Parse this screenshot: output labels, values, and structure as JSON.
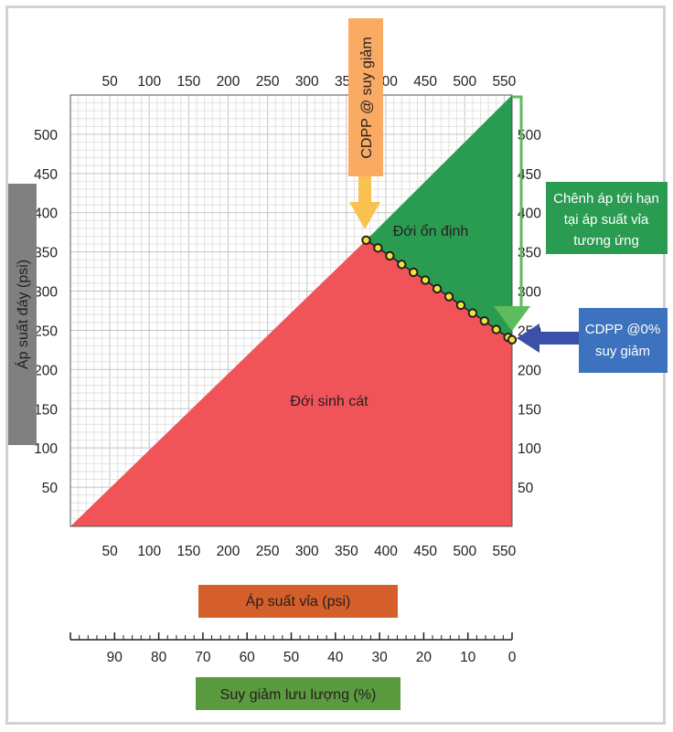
{
  "chart_data": {
    "type": "area",
    "axes": {
      "x_top_ticks": [
        "50",
        "100",
        "150",
        "200",
        "250",
        "300",
        "350",
        "400",
        "450",
        "500",
        "550"
      ],
      "x_bottom_ticks": [
        "50",
        "100",
        "150",
        "200",
        "250",
        "300",
        "350",
        "400",
        "450",
        "500",
        "550"
      ],
      "y_left_ticks": [
        "500",
        "450",
        "400",
        "350",
        "300",
        "250",
        "200",
        "150",
        "100",
        "50"
      ],
      "y_right_ticks": [
        "500",
        "450",
        "400",
        "350",
        "300",
        "250",
        "200",
        "150",
        "100",
        "50"
      ],
      "x_range": [
        0,
        560
      ],
      "y_range": [
        0,
        550
      ],
      "percent_ticks": [
        "90",
        "80",
        "70",
        "60",
        "50",
        "40",
        "30",
        "20",
        "10",
        "0"
      ],
      "percent_range": [
        100,
        0
      ]
    },
    "labels": {
      "ylabel": "Áp suất đáy (psi)",
      "xlabel": "Áp suất vỉa (psi)",
      "percent_label": "Suy giảm lưu lượng (%)",
      "zone_sand": "Đới sinh cát",
      "zone_stable": "Đới ổn định",
      "cdpp_depletion": "CDPP @ suy giảm",
      "critical_line1": "Chênh áp tới hạn",
      "critical_line2": "tại áp suất vỉa",
      "critical_line3": "tương ứng",
      "cdpp_zero_line1": "CDPP @0%",
      "cdpp_zero_line2": "suy giảm"
    },
    "regions": {
      "sand_zone": [
        [
          0,
          0
        ],
        [
          375,
          365
        ],
        [
          560,
          238
        ],
        [
          560,
          0
        ]
      ],
      "stable_zone": [
        [
          375,
          365
        ],
        [
          560,
          550
        ],
        [
          560,
          238
        ]
      ]
    },
    "cdpp_curve": {
      "x": [
        375,
        390,
        405,
        420,
        435,
        450,
        465,
        480,
        495,
        510,
        525,
        540,
        555,
        560
      ],
      "y": [
        365,
        355,
        345,
        334,
        324,
        314,
        303,
        293,
        282,
        272,
        262,
        251,
        241,
        238
      ]
    },
    "grid": true,
    "colors": {
      "sand_zone": "#f05458",
      "stable_zone": "#2a9c52",
      "cdpp_depletion_box": "#f9ab64",
      "cdpp_depletion_arrow": "#f9c150",
      "critical_box": "#2a9c52",
      "critical_arrow": "#5ebd5a",
      "cdpp_zero_box": "#3d72be",
      "cdpp_zero_arrow": "#3b50a8",
      "xlabel_box": "#d45f2b",
      "percent_box": "#5b9a3e",
      "ylabel_box": "#808080",
      "dot_fill": "#f2e33c"
    }
  }
}
